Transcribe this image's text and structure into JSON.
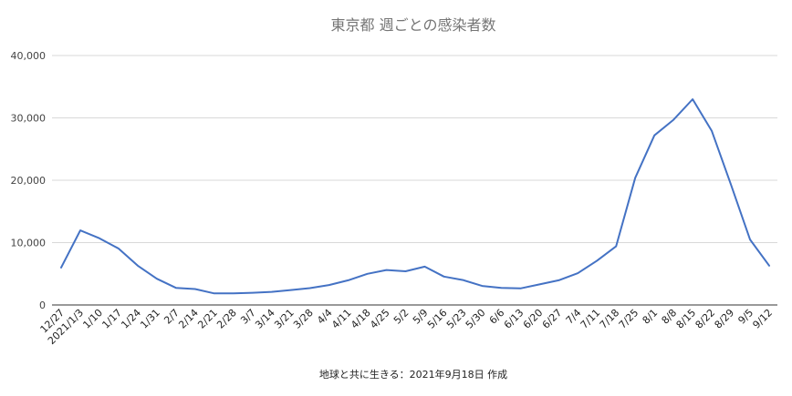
{
  "chart_data": {
    "type": "line",
    "title": "東京都 週ごとの感染者数",
    "caption": "地球と共に生きる：2021年9月18日 作成",
    "xlabel": "",
    "ylabel": "",
    "ylim": [
      0,
      40000
    ],
    "yticks": [
      0,
      10000,
      20000,
      30000,
      40000
    ],
    "ytick_labels": [
      "0",
      "10,000",
      "20,000",
      "30,000",
      "40,000"
    ],
    "grid": true,
    "legend": "none",
    "categories": [
      "12/27",
      "2021/1/3",
      "1/10",
      "1/17",
      "1/24",
      "1/31",
      "2/7",
      "2/14",
      "2/21",
      "2/28",
      "3/7",
      "3/14",
      "3/21",
      "3/28",
      "4/4",
      "4/11",
      "4/18",
      "4/25",
      "5/2",
      "5/9",
      "5/16",
      "5/23",
      "5/30",
      "6/6",
      "6/13",
      "6/20",
      "6/27",
      "7/4",
      "7/11",
      "7/18",
      "7/25",
      "8/1",
      "8/8",
      "8/15",
      "8/22",
      "8/29",
      "9/5",
      "9/12"
    ],
    "series": [
      {
        "color": "#4472c4",
        "values": [
          6000,
          11950,
          10700,
          9050,
          6300,
          4200,
          2750,
          2550,
          1850,
          1850,
          1950,
          2100,
          2400,
          2700,
          3200,
          3950,
          5000,
          5600,
          5400,
          6150,
          4550,
          4000,
          3050,
          2750,
          2650,
          3300,
          3950,
          5100,
          7100,
          9400,
          20400,
          27200,
          29700,
          33000,
          27900,
          19300,
          10500,
          6300
        ]
      }
    ]
  }
}
